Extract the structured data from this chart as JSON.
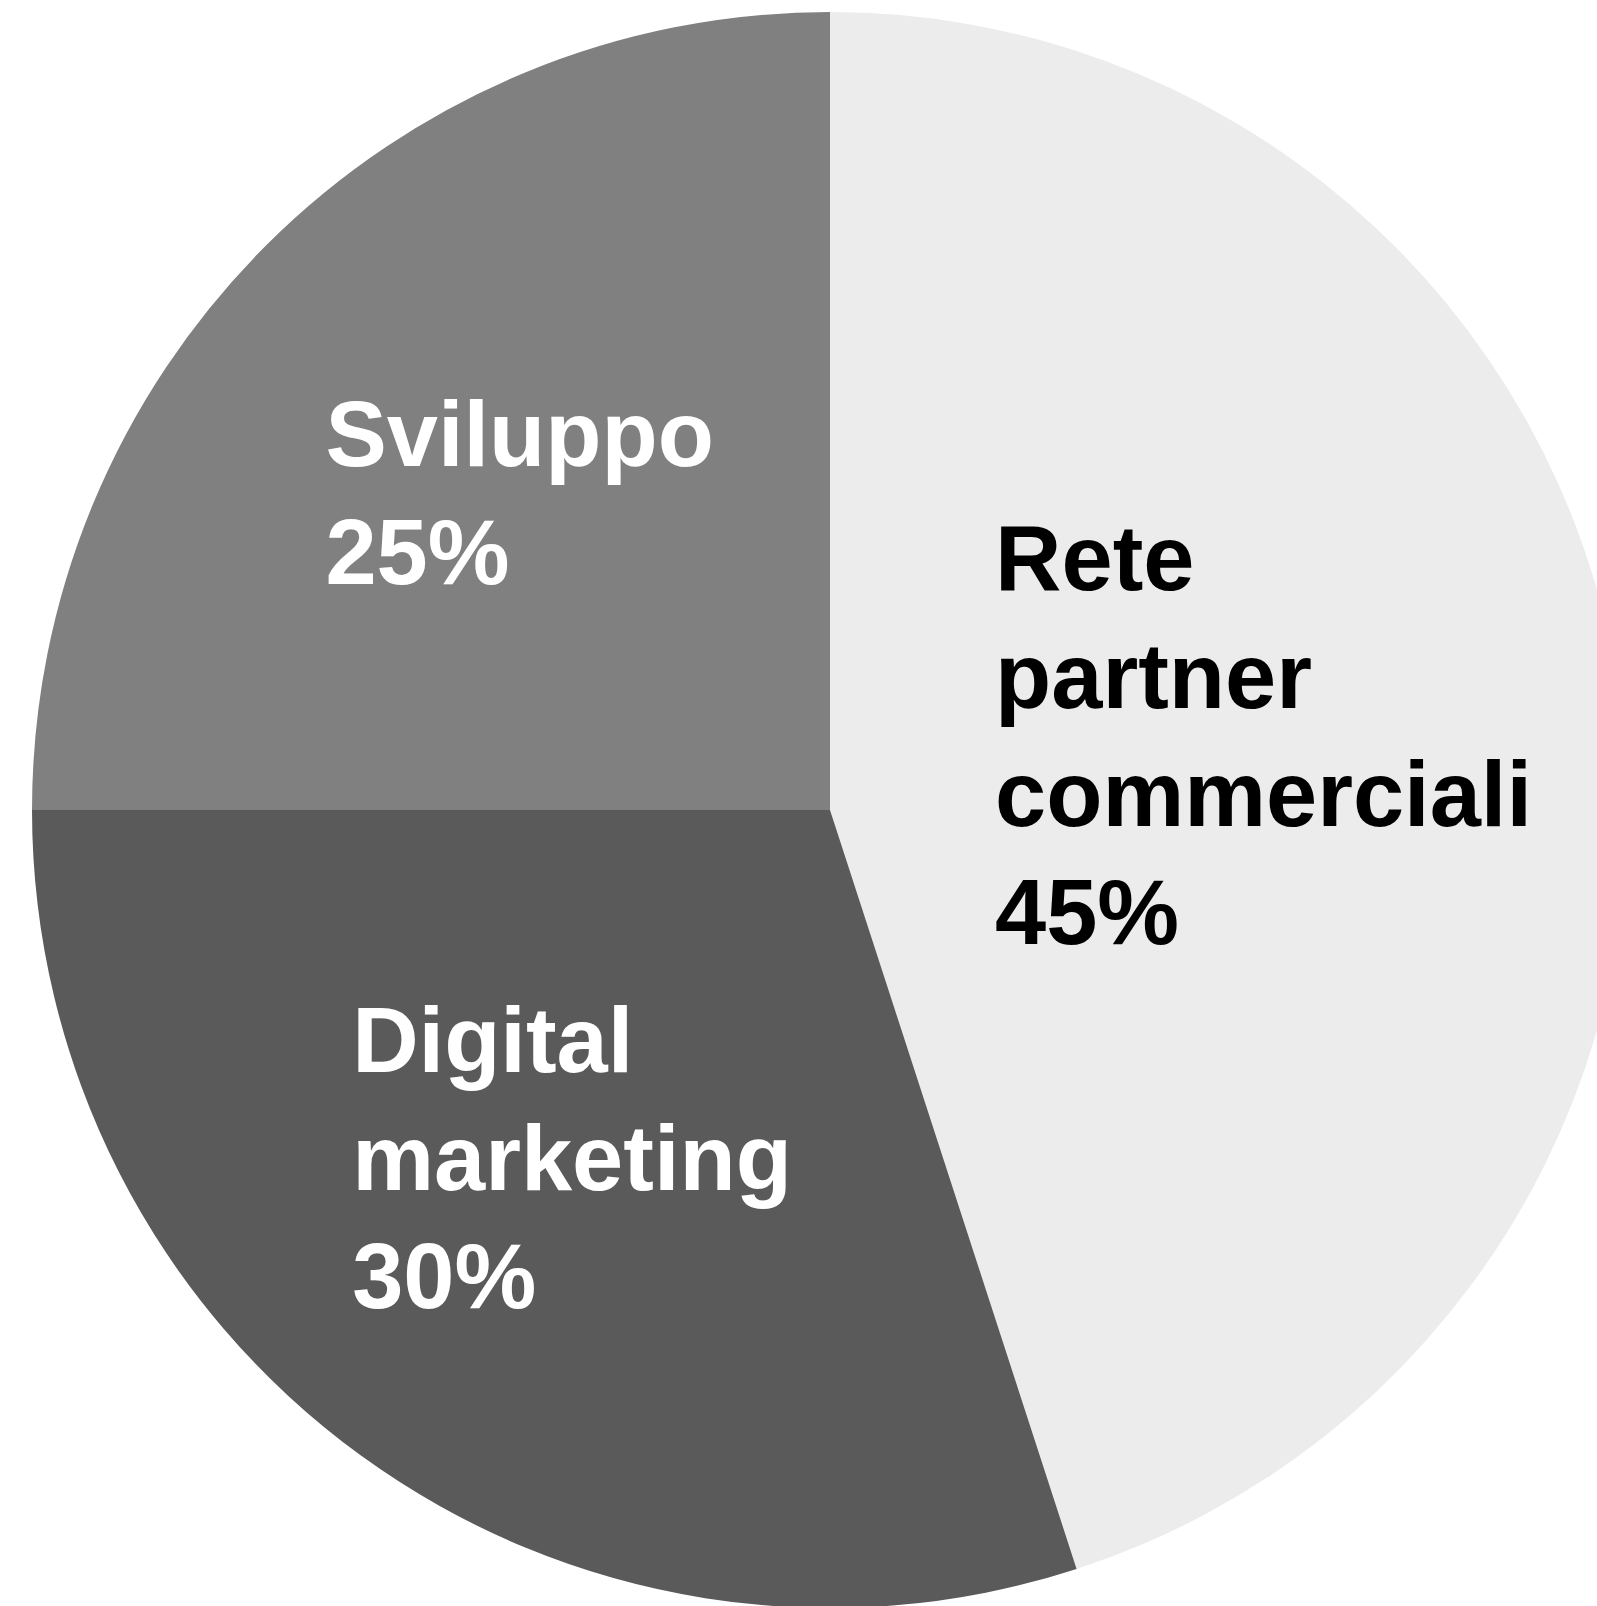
{
  "chart_data": {
    "type": "pie",
    "categories": [
      "Rete partner commerciali",
      "Digital marketing",
      "Sviluppo"
    ],
    "values": [
      45,
      30,
      25
    ],
    "colors": [
      "#ececec",
      "#5a5a5a",
      "#808080"
    ],
    "value_labels": [
      "45%",
      "30%",
      "25%"
    ],
    "legend": false
  }
}
